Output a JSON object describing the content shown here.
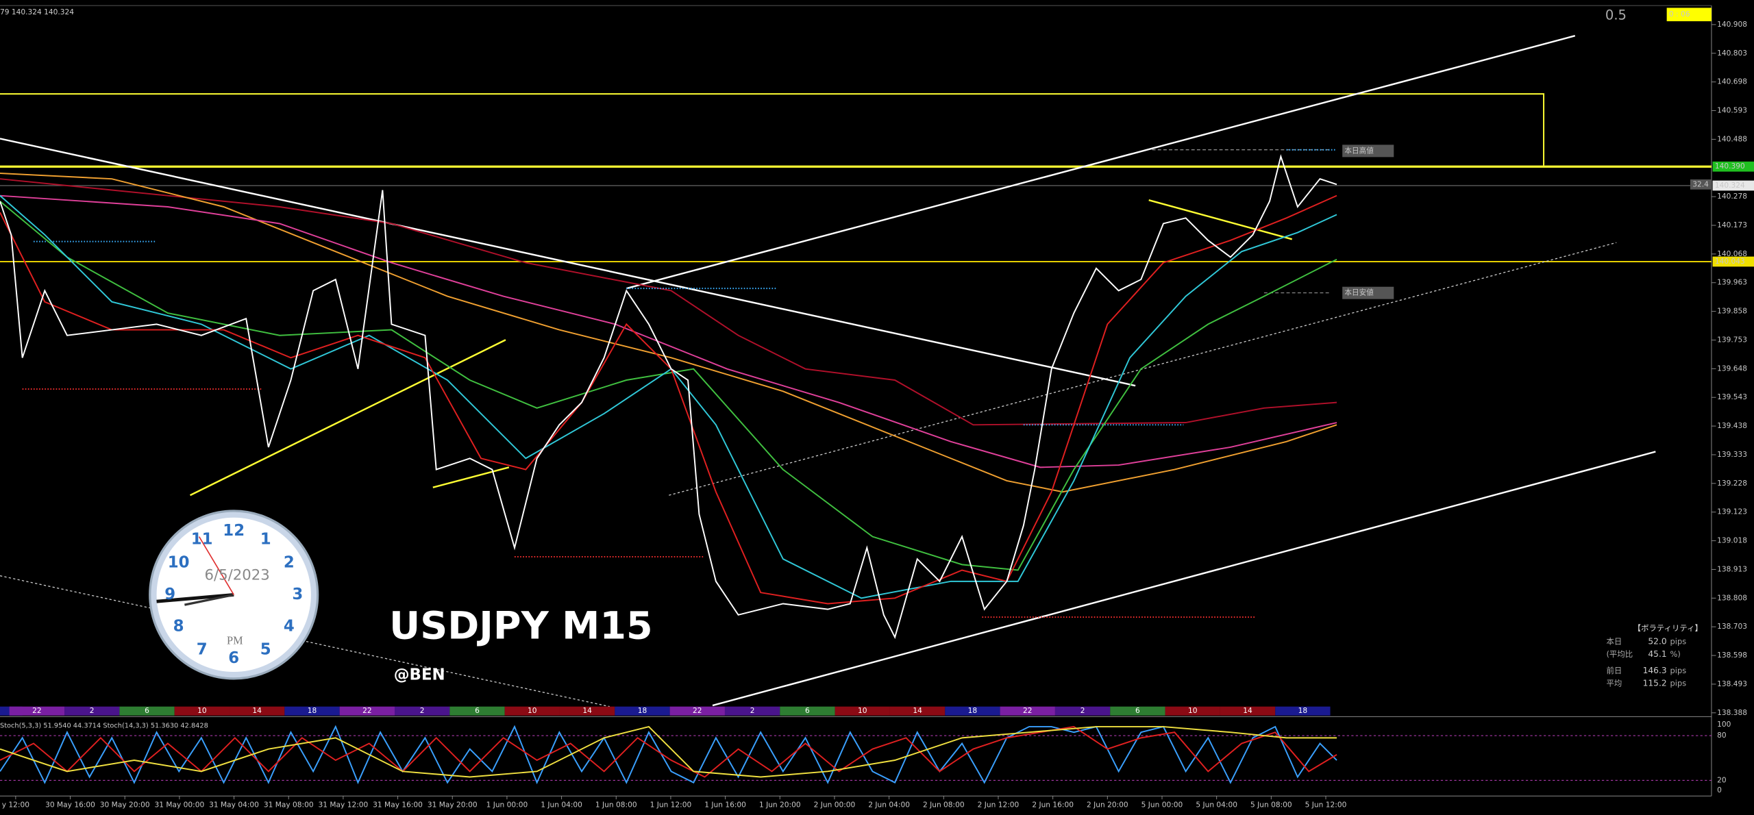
{
  "header": {
    "symbol_info": "79 140.324 140.324",
    "spread": "0.5",
    "timer": "0 : 06"
  },
  "chart": {
    "title": "USDJPY M15",
    "author": "@BEN"
  },
  "price_axis": {
    "labels": [
      "140.908",
      "140.803",
      "140.698",
      "140.593",
      "140.488",
      "140.278",
      "140.173",
      "140.068",
      "139.963",
      "139.858",
      "139.753",
      "139.648",
      "139.543",
      "139.438",
      "139.333",
      "139.228",
      "139.123",
      "139.018",
      "138.913",
      "138.808",
      "138.703",
      "138.598",
      "138.493",
      "138.388"
    ],
    "high_line": "140.390",
    "current_price": "140.324",
    "low_line": "140.043",
    "marker": "32.4"
  },
  "annotations": {
    "high": "本日高値",
    "low": "本日安値"
  },
  "clock": {
    "date": "6/5/2023",
    "period": "PM",
    "numbers": [
      "12",
      "1",
      "2",
      "3",
      "4",
      "5",
      "6",
      "7",
      "8",
      "9",
      "10",
      "11"
    ]
  },
  "volatility": {
    "title": "【ボラティリティ】",
    "rows": [
      [
        "本日",
        "52.0",
        "pips"
      ],
      [
        "(平均比",
        "45.1",
        "%)"
      ],
      [
        "前日",
        "146.3",
        "pips"
      ],
      [
        "平均",
        "115.2",
        "pips"
      ]
    ]
  },
  "session_bar": {
    "labels": [
      "22",
      "2",
      "6",
      "10",
      "14",
      "18",
      "22",
      "2",
      "6",
      "10",
      "14",
      "18",
      "22",
      "2",
      "6",
      "10",
      "14",
      "18",
      "22",
      "2",
      "6",
      "10",
      "14",
      "18"
    ]
  },
  "stochastic": {
    "legend": "Stoch(5,3,3) 51.9540 44.3714  Stoch(14,3,3) 51.3630 42.8428",
    "levels": [
      "100",
      "80",
      "20",
      "0"
    ]
  },
  "time_axis": {
    "labels": [
      "y 12:00",
      "30 May 16:00",
      "30 May 20:00",
      "31 May 00:00",
      "31 May 04:00",
      "31 May 08:00",
      "31 May 12:00",
      "31 May 16:00",
      "31 May 20:00",
      "1 Jun 00:00",
      "1 Jun 04:00",
      "1 Jun 08:00",
      "1 Jun 12:00",
      "1 Jun 16:00",
      "1 Jun 20:00",
      "2 Jun 00:00",
      "2 Jun 04:00",
      "2 Jun 08:00",
      "2 Jun 12:00",
      "2 Jun 16:00",
      "2 Jun 20:00",
      "5 Jun 00:00",
      "5 Jun 04:00",
      "5 Jun 08:00",
      "5 Jun 12:00"
    ]
  }
}
